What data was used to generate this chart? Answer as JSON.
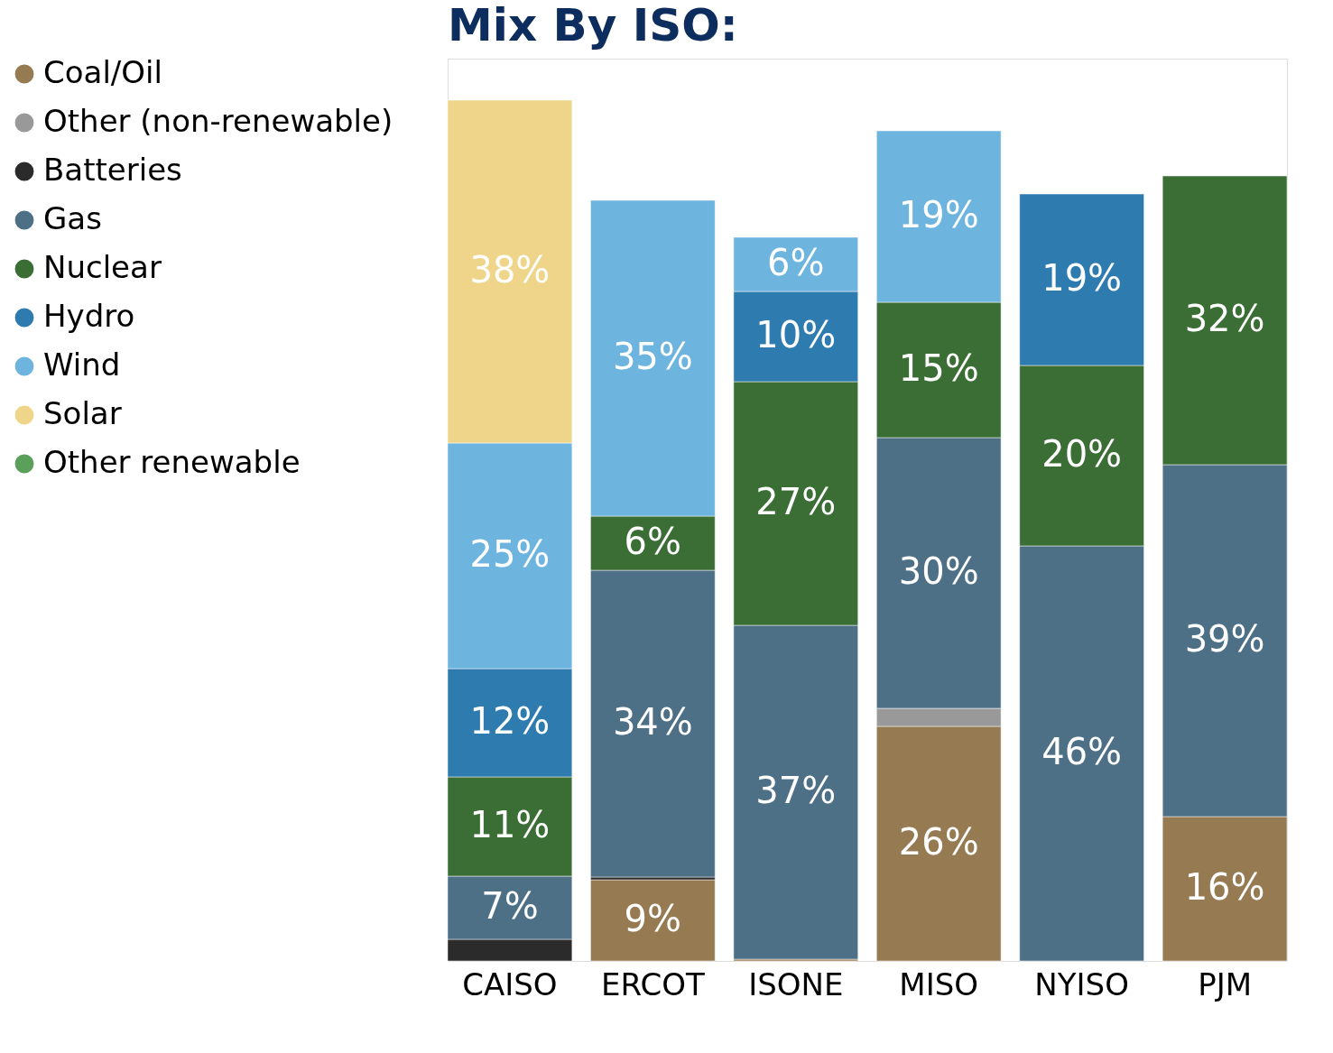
{
  "chart_data": {
    "type": "bar",
    "stacked": true,
    "title": "Mix By ISO:",
    "categories": [
      "CAISO",
      "ERCOT",
      "ISONE",
      "MISO",
      "NYISO",
      "PJM"
    ],
    "ylim": [
      0,
      100
    ],
    "legend": "left",
    "series": [
      {
        "name": "Coal/Oil",
        "color": "#967a52",
        "values": [
          null,
          9,
          0.2,
          26,
          null,
          16
        ],
        "value_labels": [
          null,
          "9%",
          null,
          "26%",
          null,
          "16%"
        ]
      },
      {
        "name": "Other (non-renewable)",
        "color": "#999999",
        "values": [
          null,
          null,
          null,
          2,
          null,
          null
        ],
        "value_labels": [
          null,
          null,
          null,
          null,
          null,
          null
        ]
      },
      {
        "name": "Batteries",
        "color": "#2b2b2b",
        "values": [
          2.4,
          0.3,
          null,
          null,
          null,
          null
        ],
        "value_labels": [
          null,
          null,
          null,
          null,
          null,
          null
        ]
      },
      {
        "name": "Gas",
        "color": "#4e7087",
        "values": [
          7,
          34,
          37,
          30,
          46,
          39
        ],
        "value_labels": [
          "7%",
          "34%",
          "37%",
          "30%",
          "46%",
          "39%"
        ]
      },
      {
        "name": "Nuclear",
        "color": "#3b6e35",
        "values": [
          11,
          6,
          27,
          15,
          20,
          32
        ],
        "value_labels": [
          "11%",
          "6%",
          "27%",
          "15%",
          "20%",
          "32%"
        ]
      },
      {
        "name": "Hydro",
        "color": "#2e7bb0",
        "values": [
          12,
          null,
          10,
          null,
          19,
          null
        ],
        "value_labels": [
          "12%",
          null,
          "10%",
          null,
          "19%",
          null
        ]
      },
      {
        "name": "Wind",
        "color": "#6db4df",
        "values": [
          25,
          35,
          6,
          19,
          null,
          null
        ],
        "value_labels": [
          "25%",
          "35%",
          "6%",
          "19%",
          null,
          null
        ]
      },
      {
        "name": "Solar",
        "color": "#efd58a",
        "values": [
          38,
          null,
          null,
          null,
          null,
          null
        ],
        "value_labels": [
          "38%",
          null,
          null,
          null,
          null,
          null
        ]
      },
      {
        "name": "Other renewable",
        "color": "#5aa05a",
        "values": [
          null,
          null,
          null,
          null,
          null,
          null
        ],
        "value_labels": [
          null,
          null,
          null,
          null,
          null,
          null
        ]
      }
    ]
  }
}
